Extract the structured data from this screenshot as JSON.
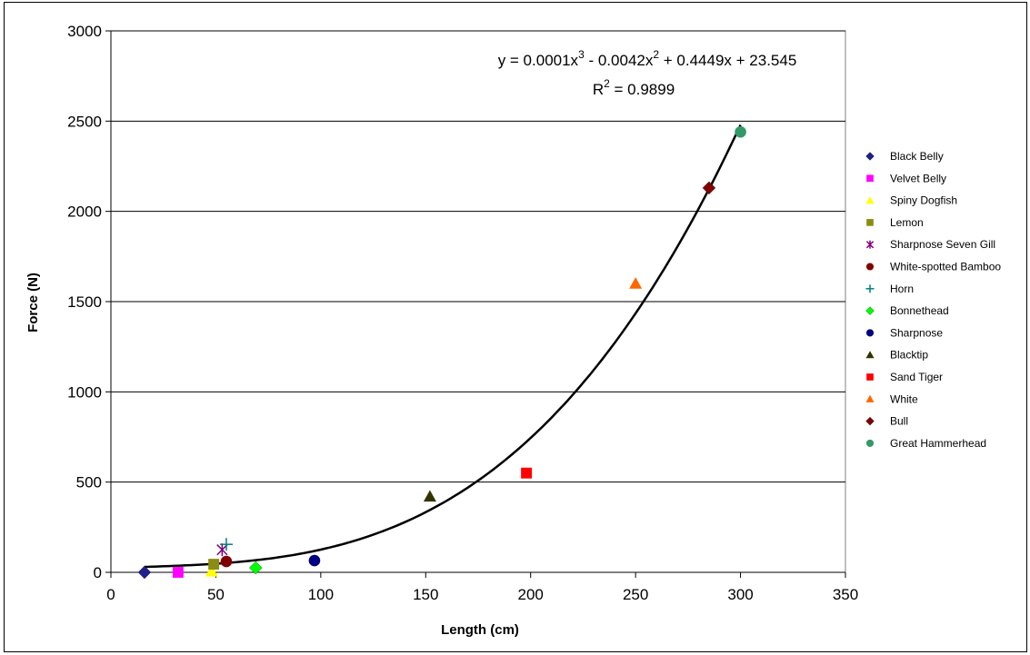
{
  "chart_data": {
    "type": "scatter",
    "xlabel": "Length (cm)",
    "ylabel": "Force (N)",
    "xlim": [
      0,
      350
    ],
    "ylim": [
      0,
      3000
    ],
    "xticks": [
      "0",
      "50",
      "100",
      "150",
      "200",
      "250",
      "300",
      "350"
    ],
    "yticks": [
      "0",
      "500",
      "1000",
      "1500",
      "2000",
      "2500",
      "3000"
    ],
    "grid": "horizontal major gridlines",
    "legend_position": "right",
    "trendline": {
      "type": "polynomial order 3",
      "coefficients": [
        0.0001,
        -0.0042,
        0.4449,
        23.545
      ],
      "x_range": [
        16,
        300
      ],
      "equation_base": "y = 0.0001x",
      "equation_exp1": "3",
      "equation_mid": " - 0.0042x",
      "equation_exp2": "2",
      "equation_tail": " + 0.4449x + 23.545",
      "r2_base": "R",
      "r2_exp": "2",
      "r2_tail": " = 0.9899",
      "color": "#000000"
    },
    "series": [
      {
        "name": "Black Belly",
        "marker": "diamond",
        "color": "#1f1f8c",
        "x": 16,
        "y": 0
      },
      {
        "name": "Velvet Belly",
        "marker": "square",
        "color": "#ff00ff",
        "x": 32,
        "y": 0
      },
      {
        "name": "Spiny Dogfish",
        "marker": "triangle",
        "color": "#ffff00",
        "x": 48,
        "y": 5
      },
      {
        "name": "Lemon",
        "marker": "square",
        "color": "#8c8c14",
        "x": 49,
        "y": 45
      },
      {
        "name": "Sharpnose Seven Gill",
        "marker": "star",
        "color": "#800080",
        "x": 53,
        "y": 125
      },
      {
        "name": "White-spotted Bamboo",
        "marker": "circle",
        "color": "#800000",
        "x": 55,
        "y": 60
      },
      {
        "name": "Horn",
        "marker": "plus",
        "color": "#008080",
        "x": 55,
        "y": 155
      },
      {
        "name": "Bonnethead",
        "marker": "diamond",
        "color": "#00ff00",
        "x": 69,
        "y": 25
      },
      {
        "name": "Sharpnose",
        "marker": "circle",
        "color": "#000080",
        "x": 97,
        "y": 65
      },
      {
        "name": "Blacktip",
        "marker": "triangle",
        "color": "#333300",
        "x": 152,
        "y": 420
      },
      {
        "name": "Sand Tiger",
        "marker": "square",
        "color": "#ff0000",
        "x": 198,
        "y": 550
      },
      {
        "name": "White",
        "marker": "triangle",
        "color": "#ff6600",
        "x": 250,
        "y": 1600
      },
      {
        "name": "Bull",
        "marker": "diamond",
        "color": "#800000",
        "x": 285,
        "y": 2130
      },
      {
        "name": "Great Hammerhead",
        "marker": "circle",
        "color": "#339966",
        "x": 300,
        "y": 2440
      }
    ]
  }
}
